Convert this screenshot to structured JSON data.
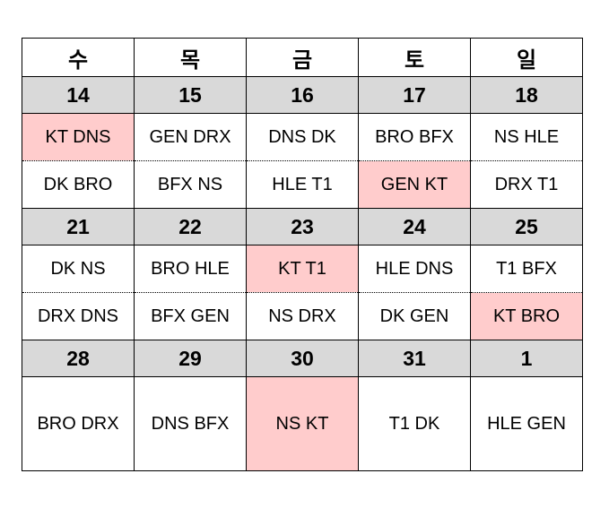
{
  "days": [
    "수",
    "목",
    "금",
    "토",
    "일"
  ],
  "weeks": [
    {
      "dates": [
        "14",
        "15",
        "16",
        "17",
        "18"
      ],
      "games": [
        [
          {
            "text": "KT DNS",
            "hl": true
          },
          {
            "text": "GEN DRX",
            "hl": false
          },
          {
            "text": "DNS DK",
            "hl": false
          },
          {
            "text": "BRO BFX",
            "hl": false
          },
          {
            "text": "NS HLE",
            "hl": false
          }
        ],
        [
          {
            "text": "DK BRO",
            "hl": false
          },
          {
            "text": "BFX NS",
            "hl": false
          },
          {
            "text": "HLE T1",
            "hl": false
          },
          {
            "text": "GEN KT",
            "hl": true
          },
          {
            "text": "DRX T1",
            "hl": false
          }
        ]
      ]
    },
    {
      "dates": [
        "21",
        "22",
        "23",
        "24",
        "25"
      ],
      "games": [
        [
          {
            "text": "DK NS",
            "hl": false
          },
          {
            "text": "BRO HLE",
            "hl": false
          },
          {
            "text": "KT T1",
            "hl": true
          },
          {
            "text": "HLE DNS",
            "hl": false
          },
          {
            "text": "T1 BFX",
            "hl": false
          }
        ],
        [
          {
            "text": "DRX DNS",
            "hl": false
          },
          {
            "text": "BFX GEN",
            "hl": false
          },
          {
            "text": "NS DRX",
            "hl": false
          },
          {
            "text": "DK GEN",
            "hl": false
          },
          {
            "text": "KT BRO",
            "hl": true
          }
        ]
      ]
    },
    {
      "dates": [
        "28",
        "29",
        "30",
        "31",
        "1"
      ],
      "games": [
        [
          {
            "text": "BRO DRX",
            "hl": false
          },
          {
            "text": "DNS BFX",
            "hl": false
          },
          {
            "text": "NS KT",
            "hl": true
          },
          {
            "text": "T1 DK",
            "hl": false
          },
          {
            "text": "HLE GEN",
            "hl": false
          }
        ]
      ]
    }
  ],
  "colors": {
    "header_bg": "#d9d9d9",
    "highlight": "#ffcccc",
    "border": "#000000"
  }
}
